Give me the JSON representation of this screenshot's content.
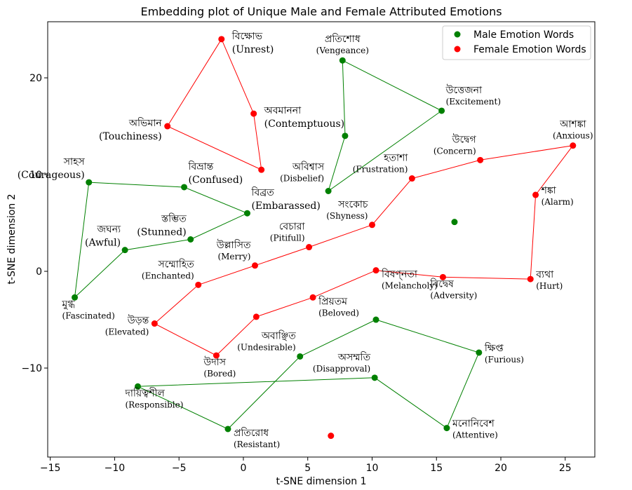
{
  "chart_data": {
    "type": "scatter",
    "title": "Embedding plot of Unique Male and Female Attributed Emotions",
    "xlabel": "t-SNE dimension 1",
    "ylabel": "t-SNE dimension 2",
    "xlim": [
      -15.2,
      27.3
    ],
    "ylim": [
      -19.2,
      25.8
    ],
    "xticks": [
      -15,
      -10,
      -5,
      0,
      5,
      10,
      15,
      20,
      25
    ],
    "yticks": [
      -10,
      0,
      10,
      20
    ],
    "xtick_labels": [
      "−15",
      "−10",
      "−5",
      "0",
      "5",
      "10",
      "15",
      "20",
      "25"
    ],
    "ytick_labels": [
      "−10",
      "0",
      "10",
      "20"
    ],
    "legend_position": "top-right",
    "series": [
      {
        "name": "Male Emotion Words",
        "color": "#008000",
        "points": [
          {
            "bn": "প্রতিশোধ",
            "en": "(Vengeance)",
            "x": 7.7,
            "y": 21.8,
            "pos": "above",
            "size": "small"
          },
          {
            "bn": "",
            "en": "",
            "x": 7.9,
            "y": 14.0,
            "pos": "none",
            "size": "small"
          },
          {
            "bn": "উত্তেজনা",
            "en": "(Excitement)",
            "x": 15.4,
            "y": 16.6,
            "pos": "above-right",
            "size": "small"
          },
          {
            "bn": "অবিশ্বাস",
            "en": "(Disbelief)",
            "x": 6.6,
            "y": 8.3,
            "pos": "upper-left",
            "size": "small"
          },
          {
            "bn": "সাহস",
            "en": "(Courageous)",
            "x": -12.0,
            "y": 9.2,
            "pos": "above-left",
            "size": "big"
          },
          {
            "bn": "বিভ্রান্ত",
            "en": "(Confused)",
            "x": -4.6,
            "y": 8.7,
            "pos": "above-right",
            "size": "big"
          },
          {
            "bn": "বিব্রত",
            "en": "(Embarassed)",
            "x": 0.3,
            "y": 6.0,
            "pos": "above-right",
            "size": "big"
          },
          {
            "bn": "স্তম্ভিত",
            "en": "(Stunned)",
            "x": -4.1,
            "y": 3.3,
            "pos": "above-left",
            "size": "big"
          },
          {
            "bn": "জঘন্য",
            "en": "(Awful)",
            "x": -9.2,
            "y": 2.2,
            "pos": "above-left",
            "size": "big"
          },
          {
            "bn": "মুগ্ধ",
            "en": "(Fascinated)",
            "x": -13.1,
            "y": -2.7,
            "pos": "below-left",
            "size": "small"
          },
          {
            "bn": "",
            "en": "",
            "x": 16.4,
            "y": 5.1,
            "pos": "none",
            "size": "small"
          },
          {
            "bn": "",
            "en": "",
            "x": 10.3,
            "y": -5.0,
            "pos": "none",
            "size": "small"
          },
          {
            "bn": "ক্ষিপ্ত",
            "en": "(Furious)",
            "x": 18.3,
            "y": -8.4,
            "pos": "right",
            "size": "small"
          },
          {
            "bn": "অবাঞ্ছিত",
            "en": "(Undesirable)",
            "x": 4.4,
            "y": -8.8,
            "pos": "above-left",
            "size": "small"
          },
          {
            "bn": "অসম্মতি",
            "en": "(Disapproval)",
            "x": 10.2,
            "y": -11.0,
            "pos": "above-left",
            "size": "small"
          },
          {
            "bn": "দায়িত্বশীল",
            "en": "(Responsible)",
            "x": -8.2,
            "y": -11.9,
            "pos": "below-left",
            "size": "small"
          },
          {
            "bn": "প্রতিরোধ",
            "en": "(Resistant)",
            "x": -1.2,
            "y": -16.3,
            "pos": "below-right",
            "size": "small"
          },
          {
            "bn": "মনোনিবেশ",
            "en": "(Attentive)",
            "x": 15.8,
            "y": -16.2,
            "pos": "right",
            "size": "small"
          }
        ],
        "polygons": [
          [
            0,
            1,
            3,
            2,
            0
          ],
          [
            4,
            5,
            6,
            7,
            8,
            9,
            4
          ],
          [
            11,
            12,
            17,
            14,
            15,
            16,
            13,
            11
          ]
        ]
      },
      {
        "name": "Female Emotion Words",
        "color": "#ff0000",
        "points": [
          {
            "bn": "বিক্ষোভ",
            "en": "(Unrest)",
            "x": -1.7,
            "y": 24.0,
            "pos": "upper-right",
            "size": "big"
          },
          {
            "bn": "অবমাননা",
            "en": "(Contemptuous)",
            "x": 0.8,
            "y": 16.3,
            "pos": "upper-right",
            "size": "big"
          },
          {
            "bn": "অভিমান",
            "en": "(Touchiness)",
            "x": -5.9,
            "y": 15.0,
            "pos": "left",
            "size": "big"
          },
          {
            "bn": "",
            "en": "",
            "x": 1.4,
            "y": 10.5,
            "pos": "none",
            "size": "small"
          },
          {
            "bn": "আশঙ্কা",
            "en": "(Anxious)",
            "x": 25.6,
            "y": 13.0,
            "pos": "above",
            "size": "small"
          },
          {
            "bn": "উদ্বেগ",
            "en": "(Concern)",
            "x": 18.4,
            "y": 11.5,
            "pos": "above-left",
            "size": "small"
          },
          {
            "bn": "হতাশা",
            "en": "(Frustration)",
            "x": 13.1,
            "y": 9.6,
            "pos": "above-left",
            "size": "small"
          },
          {
            "bn": "শঙ্কা",
            "en": "(Alarm)",
            "x": 22.7,
            "y": 7.9,
            "pos": "right",
            "size": "small"
          },
          {
            "bn": "সংকোচ",
            "en": "(Shyness)",
            "x": 10.0,
            "y": 4.8,
            "pos": "above-left",
            "size": "small"
          },
          {
            "bn": "বেচারা",
            "en": "(Pitifull)",
            "x": 5.1,
            "y": 2.5,
            "pos": "above-left",
            "size": "small"
          },
          {
            "bn": "উল্লাসিত",
            "en": "(Merry)",
            "x": 0.9,
            "y": 0.6,
            "pos": "above-left",
            "size": "small"
          },
          {
            "bn": "সম্মোহিত",
            "en": "(Enchanted)",
            "x": -3.5,
            "y": -1.4,
            "pos": "above-left",
            "size": "small"
          },
          {
            "bn": "বিষণ্নতা",
            "en": "(Melancholy)",
            "x": 10.3,
            "y": 0.1,
            "pos": "below-right",
            "size": "small"
          },
          {
            "bn": "বিদ্বেষ",
            "en": "(Adversity)",
            "x": 15.5,
            "y": -0.6,
            "pos": "below-left",
            "size": "small"
          },
          {
            "bn": "ব্যথা",
            "en": "(Hurt)",
            "x": 22.3,
            "y": -0.8,
            "pos": "right",
            "size": "small"
          },
          {
            "bn": "প্রিয়তম",
            "en": "(Beloved)",
            "x": 5.4,
            "y": -2.7,
            "pos": "below-right",
            "size": "small"
          },
          {
            "bn": "উড়ন্ত",
            "en": "(Elevated)",
            "x": -6.9,
            "y": -5.4,
            "pos": "left",
            "size": "small"
          },
          {
            "bn": "",
            "en": "",
            "x": 1.0,
            "y": -4.7,
            "pos": "none",
            "size": "small"
          },
          {
            "bn": "উদাস",
            "en": "(Bored)",
            "x": -2.1,
            "y": -8.7,
            "pos": "below-left",
            "size": "small"
          },
          {
            "bn": "",
            "en": "",
            "x": 6.8,
            "y": -17.0,
            "pos": "none",
            "size": "small"
          }
        ],
        "polygons": [
          [
            0,
            1,
            3,
            2,
            0
          ],
          [
            4,
            5,
            6,
            8,
            9,
            10,
            11,
            16,
            18,
            17,
            15,
            12,
            13,
            14,
            7,
            4
          ]
        ]
      }
    ]
  }
}
